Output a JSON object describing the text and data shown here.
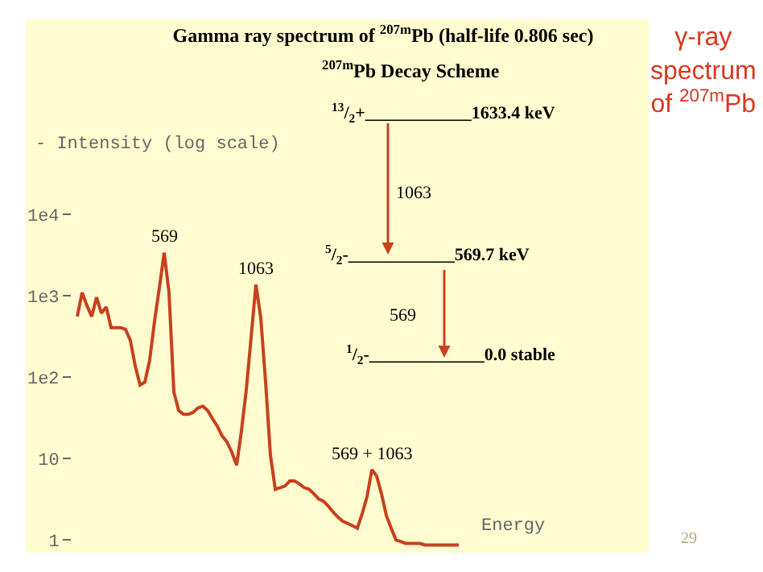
{
  "chart_data": {
    "type": "line",
    "title": "Gamma ray spectrum of $^{207m}$Pb (half-life 0.806 sec)",
    "ylabel": "- Intensity (log scale)",
    "xlabel": "Energy",
    "categories": [
      null,
      null,
      null,
      null,
      null,
      null,
      null,
      null,
      null,
      null,
      null,
      null,
      null,
      null,
      null,
      null,
      null,
      null,
      null,
      null,
      null,
      null,
      null,
      null,
      null,
      null,
      null,
      null,
      null,
      null,
      null,
      null,
      null,
      null,
      null,
      null,
      null,
      null,
      null,
      null,
      null,
      null,
      null,
      null,
      null,
      null,
      null,
      null,
      null,
      null,
      null,
      null,
      null,
      null,
      null,
      null,
      null,
      null,
      null,
      null,
      null,
      null,
      null,
      null,
      null,
      null,
      null,
      null,
      null,
      null,
      null,
      null,
      null,
      null,
      null,
      null,
      null,
      null,
      null,
      null
    ],
    "series": [
      {
        "color": "#c8401e",
        "values": [
          556,
          1090,
          760,
          556,
          955,
          610,
          730,
          405,
          405,
          405,
          387,
          282,
          137,
          80,
          87,
          162,
          485,
          1250,
          3380,
          1090,
          66,
          39,
          35,
          35,
          37,
          42,
          44,
          39,
          31,
          25,
          19,
          16,
          12,
          8.3,
          22,
          70,
          309,
          1370,
          533,
          87,
          11,
          4.2,
          4.4,
          4.6,
          5.3,
          5.3,
          4.9,
          4.4,
          4.2,
          3.7,
          3.2,
          3.0,
          2.6,
          2.2,
          1.9,
          1.7,
          1.6,
          1.5,
          1.4,
          2.1,
          3.4,
          7.3,
          6.1,
          3.7,
          2.0,
          1.4,
          1.0,
          0.96,
          0.91,
          0.91,
          0.91,
          0.91,
          0.87,
          0.87,
          0.87,
          0.87,
          0.87,
          0.87,
          0.87,
          0.87
        ]
      }
    ],
    "ylim": [
      0.7,
      10000
    ],
    "log": "y",
    "yticks": [
      1,
      10,
      {
        "value": 100,
        "label": "1e2"
      },
      {
        "value": 1000,
        "label": "1e3"
      },
      {
        "value": 10000,
        "label": "1e4"
      }
    ],
    "tick_labels": "y",
    "grid": false,
    "annotations": [
      {
        "text": "569",
        "y": 3380
      },
      {
        "text": "1063",
        "y": 1370
      },
      {
        "text": "569 + 1063",
        "y": 7.3
      },
      "$^{207m}$Pb Decay Scheme",
      "$^{13}$/$_{2}$+____________1633.4 keV",
      "1063",
      "$^{5}$/$_{2}$-____________569.7 keV",
      "569",
      "$^{1}$/$_{2}$-_____________0.0 stable",
      "γ-ray\nspectrum\nof $^{207m}$Pb",
      "29"
    ]
  }
}
